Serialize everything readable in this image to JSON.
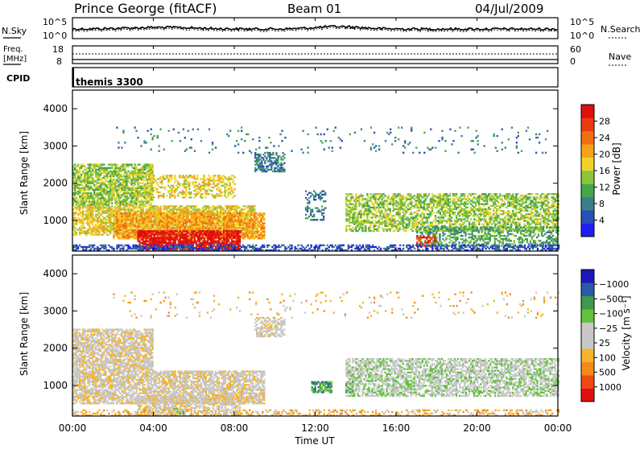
{
  "header": {
    "station": "Prince George (fitACF)",
    "beam": "Beam 01",
    "date": "04/Jul/2009"
  },
  "noise_panel": {
    "left_label": "N.Sky",
    "left_ticks": [
      "10^5",
      "10^0"
    ],
    "right_ticks": [
      "10^5",
      "10^0"
    ],
    "right_label": "N.Search"
  },
  "freq_panel": {
    "left_label_1": "Freq.",
    "left_label_2": "[MHz]",
    "left_ticks": [
      "18",
      "8"
    ],
    "right_ticks": [
      "60",
      "0"
    ],
    "right_label": "Nave"
  },
  "cpid_panel": {
    "left_label": "CPID",
    "text": "themis 3300"
  },
  "time_axis": {
    "ticks": [
      "00:00",
      "04:00",
      "08:00",
      "12:00",
      "16:00",
      "20:00",
      "00:00"
    ],
    "label": "Time UT"
  },
  "chart_data": [
    {
      "type": "heatmap",
      "quantity": "Power",
      "ylabel": "Slant Range [km]",
      "yticks": [
        1000,
        2000,
        3000,
        4000
      ],
      "ylim": [
        180,
        4500
      ],
      "xlim_hours": [
        0,
        24
      ],
      "colorbar": {
        "label": "Power [dB]",
        "ticks": [
          "4",
          "8",
          "12",
          "16",
          "20",
          "24",
          "28"
        ],
        "colors": [
          "#1f1ff0",
          "#2a4fb8",
          "#3a7f8a",
          "#46a64e",
          "#8cc63a",
          "#f2d22a",
          "#f5a21a",
          "#f06f14",
          "#ea3b10",
          "#e00f0f"
        ]
      },
      "regions": [
        {
          "t0": 0.0,
          "t1": 4.0,
          "r0": 1400,
          "r1": 2500,
          "level": 4,
          "density": 0.75
        },
        {
          "t0": 0.0,
          "t1": 9.0,
          "r0": 600,
          "r1": 1400,
          "level": 5,
          "density": 0.7
        },
        {
          "t0": 2.0,
          "t1": 9.5,
          "r0": 500,
          "r1": 1200,
          "level": 6,
          "density": 0.8
        },
        {
          "t0": 3.2,
          "t1": 8.3,
          "r0": 200,
          "r1": 700,
          "level": 9,
          "density": 0.85
        },
        {
          "t0": 3.5,
          "t1": 8.0,
          "r0": 1600,
          "r1": 2200,
          "level": 5,
          "density": 0.45
        },
        {
          "t0": 9.0,
          "t1": 10.5,
          "r0": 2300,
          "r1": 2800,
          "level": 2,
          "density": 0.6
        },
        {
          "t0": 11.5,
          "t1": 12.5,
          "r0": 1000,
          "r1": 1800,
          "level": 2,
          "density": 0.35
        },
        {
          "t0": 13.5,
          "t1": 24.0,
          "r0": 700,
          "r1": 1700,
          "level": 4,
          "density": 0.6
        },
        {
          "t0": 17.0,
          "t1": 24.0,
          "r0": 300,
          "r1": 800,
          "level": 3,
          "density": 0.5
        },
        {
          "t0": 17.0,
          "t1": 18.0,
          "r0": 300,
          "r1": 600,
          "level": 8,
          "density": 0.5
        },
        {
          "t0": 0.0,
          "t1": 24.0,
          "r0": 180,
          "r1": 320,
          "level": 1,
          "density": 0.55
        },
        {
          "t0": 2.0,
          "t1": 24.0,
          "r0": 2800,
          "r1": 3500,
          "level": 2,
          "density": 0.04
        }
      ]
    },
    {
      "type": "heatmap",
      "quantity": "Velocity",
      "ylabel": "Slant Range [km]",
      "yticks": [
        1000,
        2000,
        3000,
        4000
      ],
      "ylim": [
        180,
        4500
      ],
      "xlim_hours": [
        0,
        24
      ],
      "colorbar": {
        "label": "Velocity [m s⁻¹]",
        "ticks": [
          "1000",
          "500",
          "100",
          "25",
          "−25",
          "−100",
          "−500",
          "−1000"
        ],
        "colors": [
          "#e01010",
          "#f04a14",
          "#f58a1a",
          "#f5b42a",
          "#c8c8c8",
          "#c8c8c8",
          "#62c23a",
          "#3e9a4a",
          "#2a5aa8",
          "#1a1ab8"
        ]
      },
      "regions": [
        {
          "t0": 0.0,
          "t1": 4.0,
          "r0": 1400,
          "r1": 2500,
          "level": 4,
          "density": 0.75
        },
        {
          "t0": 0.0,
          "t1": 9.5,
          "r0": 500,
          "r1": 1400,
          "level": 4,
          "density": 0.75
        },
        {
          "t0": 3.2,
          "t1": 8.3,
          "r0": 200,
          "r1": 700,
          "level": 4,
          "density": 0.6
        },
        {
          "t0": 9.0,
          "t1": 10.5,
          "r0": 2300,
          "r1": 2800,
          "level": 4,
          "density": 0.6
        },
        {
          "t0": 13.5,
          "t1": 24.0,
          "r0": 700,
          "r1": 1700,
          "level": 5,
          "density": 0.65
        },
        {
          "t0": 11.8,
          "t1": 12.8,
          "r0": 800,
          "r1": 1100,
          "level": 7,
          "density": 0.7
        },
        {
          "t0": 13.5,
          "t1": 13.9,
          "r0": 800,
          "r1": 1100,
          "level": 6,
          "density": 0.8
        },
        {
          "t0": 4.8,
          "t1": 5.6,
          "r0": 180,
          "r1": 400,
          "level": 6,
          "density": 0.5
        },
        {
          "t0": 0.0,
          "t1": 24.0,
          "r0": 180,
          "r1": 320,
          "level": 3,
          "density": 0.35
        },
        {
          "t0": 2.0,
          "t1": 24.0,
          "r0": 2800,
          "r1": 3500,
          "level": 3,
          "density": 0.04
        }
      ]
    }
  ]
}
